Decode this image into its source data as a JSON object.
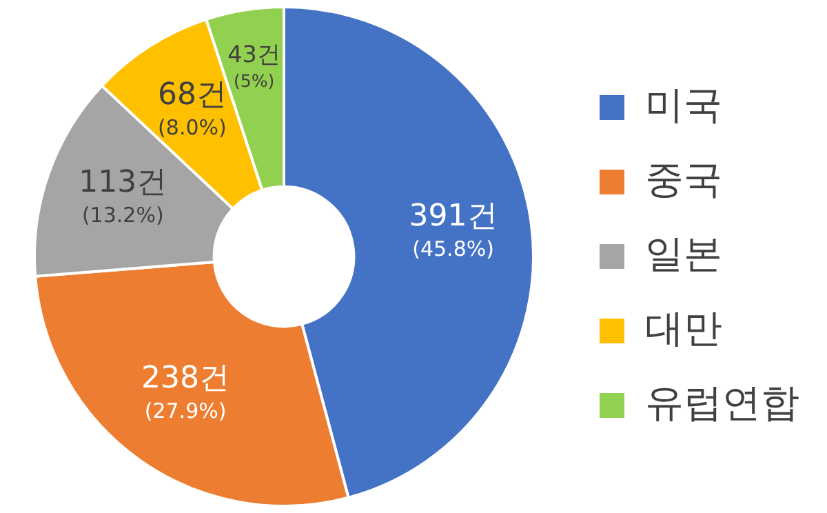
{
  "chart_data": {
    "type": "donut",
    "categories": [
      "미국",
      "중국",
      "일본",
      "대만",
      "유럽연합"
    ],
    "values": [
      391,
      238,
      113,
      68,
      43
    ],
    "colors": [
      "#4472c4",
      "#ed7d31",
      "#a5a5a5",
      "#ffc000",
      "#92d050"
    ],
    "value_labels": [
      "391건\n(45.8%)",
      "238건\n(27.9%)",
      "113건\n(13.2%)",
      "68건\n(8.0%)",
      "43건\n(5%)"
    ],
    "legend": "right"
  }
}
